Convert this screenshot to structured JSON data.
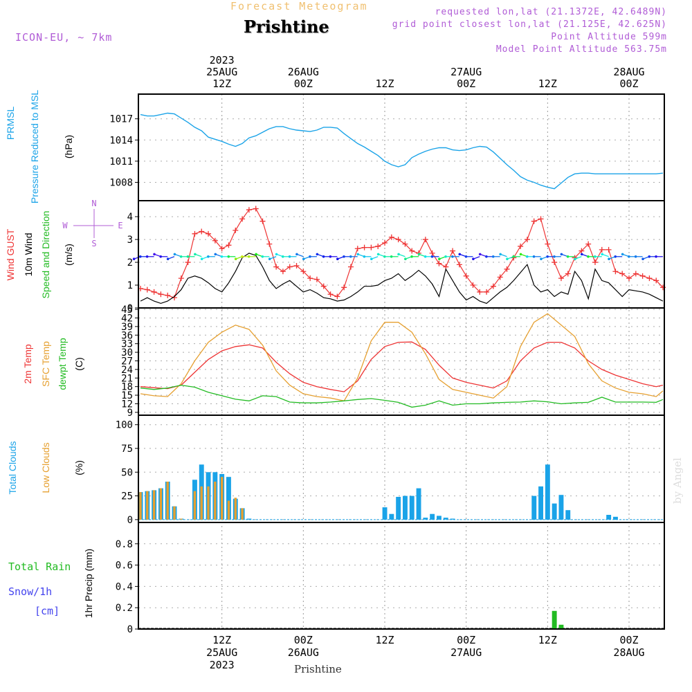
{
  "header": {
    "model": "ICON-EU, ~ 7km",
    "subtitle": "Forecast Meteogram",
    "title": "Prishtine",
    "requested": "requested lon,lat (21.1372E, 42.6489N)",
    "grid_point": "grid point closest lon,lat (21.125E, 42.625N)",
    "point_altitude": "Point Altitude 599m",
    "model_altitude": "Model Point Altitude 563.75m"
  },
  "watermark": "by Angel",
  "bottom_title": "Prishtine",
  "time_axis": {
    "ticks": [
      {
        "hour": 12,
        "time": "12Z",
        "date": "25AUG",
        "year": "2023"
      },
      {
        "hour": 24,
        "time": "00Z",
        "date": "26AUG",
        "year": ""
      },
      {
        "hour": 36,
        "time": "12Z",
        "date": "",
        "year": ""
      },
      {
        "hour": 48,
        "time": "00Z",
        "date": "27AUG",
        "year": ""
      },
      {
        "hour": 60,
        "time": "12Z",
        "date": "",
        "year": ""
      },
      {
        "hour": 72,
        "time": "00Z",
        "date": "28AUG",
        "year": ""
      }
    ],
    "x_range_hours": [
      0,
      77
    ]
  },
  "panel_labels": {
    "pressure": {
      "name": "PRMSL",
      "desc": "Pressure Reduced to MSL",
      "unit": "(hPa)"
    },
    "wind": {
      "gust": "Wind GUST",
      "wind": "10m Wind",
      "speed_dir": "Speed and Direction",
      "unit": "(m/s)",
      "compass_n": "N",
      "compass_s": "S",
      "compass_w": "W",
      "compass_e": "E"
    },
    "temp": {
      "t2m": "2m Temp",
      "sfc": "SFC Temp",
      "dewpt": "dewpt Temp",
      "unit": "(C)"
    },
    "clouds": {
      "total": "Total Clouds",
      "low": "Low Clouds",
      "unit": "(%)"
    },
    "precip": {
      "rain": "Total  Rain",
      "snow": "Snow/1h",
      "snow_unit": "[cm]",
      "unit": "1hr Precip (mm)"
    }
  },
  "colors": {
    "pressure": "#1aa3e8",
    "gust": "#ee3333",
    "wind": "#000000",
    "t2m": "#ee3333",
    "sfc": "#e6a030",
    "dewpt": "#22bb22",
    "total_clouds": "#1aa3e8",
    "low_clouds": "#e6a030",
    "rain": "#22bb22",
    "snow": "#4444ee",
    "header": "#b05cd6"
  },
  "chart_data": [
    {
      "type": "line",
      "title": "PRMSL Pressure Reduced to MSL",
      "ylabel": "(hPa)",
      "ylim": [
        1005.4,
        1020.5
      ],
      "yticks": [
        1008,
        1011,
        1014,
        1017
      ],
      "grid": true,
      "series": [
        {
          "name": "PRMSL",
          "x": [
            0,
            1,
            2,
            3,
            4,
            5,
            6,
            7,
            8,
            9,
            10,
            11,
            12,
            13,
            14,
            15,
            16,
            17,
            18,
            19,
            20,
            21,
            22,
            23,
            24,
            25,
            26,
            27,
            28,
            29,
            30,
            31,
            32,
            33,
            34,
            35,
            36,
            37,
            38,
            39,
            40,
            41,
            42,
            43,
            44,
            45,
            46,
            47,
            48,
            49,
            50,
            51,
            52,
            53,
            54,
            55,
            56,
            57,
            58,
            59,
            60,
            61,
            62,
            63,
            64,
            65,
            66,
            67,
            68,
            69,
            70,
            71,
            72,
            73,
            74,
            75,
            76,
            77
          ],
          "values": [
            1017.6,
            1017.4,
            1017.4,
            1017.6,
            1017.8,
            1017.7,
            1017.1,
            1016.5,
            1015.8,
            1015.3,
            1014.4,
            1014.1,
            1013.8,
            1013.4,
            1013.1,
            1013.5,
            1014.3,
            1014.6,
            1015.1,
            1015.6,
            1015.9,
            1015.9,
            1015.6,
            1015.4,
            1015.3,
            1015.2,
            1015.4,
            1015.8,
            1015.8,
            1015.7,
            1014.9,
            1014.2,
            1013.5,
            1013.0,
            1012.4,
            1011.8,
            1011.0,
            1010.5,
            1010.2,
            1010.5,
            1011.5,
            1012.0,
            1012.4,
            1012.7,
            1012.9,
            1012.9,
            1012.6,
            1012.5,
            1012.6,
            1012.9,
            1013.1,
            1013.0,
            1012.3,
            1011.4,
            1010.5,
            1009.7,
            1008.8,
            1008.3,
            1008.0,
            1007.6,
            1007.3,
            1007.1,
            1007.9,
            1008.7,
            1009.2,
            1009.3,
            1009.3,
            1009.2,
            1009.2,
            1009.2,
            1009.2,
            1009.2,
            1009.2,
            1009.2,
            1009.2,
            1009.2,
            1009.2,
            1009.3
          ]
        }
      ]
    },
    {
      "type": "line",
      "title": "Wind GUST / 10m Wind Speed and Direction",
      "ylabel": "(m/s)",
      "ylim": [
        0,
        4.7
      ],
      "yticks": [
        0,
        1,
        2,
        3,
        4
      ],
      "grid": true,
      "series": [
        {
          "name": "Wind GUST",
          "x": [
            0,
            1,
            2,
            3,
            4,
            5,
            6,
            7,
            8,
            9,
            10,
            11,
            12,
            13,
            14,
            15,
            16,
            17,
            18,
            19,
            20,
            21,
            22,
            23,
            24,
            25,
            26,
            27,
            28,
            29,
            30,
            31,
            32,
            33,
            34,
            35,
            36,
            37,
            38,
            39,
            40,
            41,
            42,
            43,
            44,
            45,
            46,
            47,
            48,
            49,
            50,
            51,
            52,
            53,
            54,
            55,
            56,
            57,
            58,
            59,
            60,
            61,
            62,
            63,
            64,
            65,
            66,
            67,
            68,
            69,
            70,
            71,
            72,
            73,
            74,
            75,
            76,
            77
          ],
          "values": [
            0.85,
            0.8,
            0.7,
            0.6,
            0.55,
            0.45,
            1.3,
            2.0,
            3.25,
            3.35,
            3.25,
            2.95,
            2.6,
            2.75,
            3.4,
            3.9,
            4.3,
            4.35,
            3.8,
            2.8,
            1.8,
            1.6,
            1.8,
            1.85,
            1.6,
            1.3,
            1.25,
            0.95,
            0.6,
            0.5,
            0.9,
            1.8,
            2.6,
            2.65,
            2.65,
            2.7,
            2.85,
            3.1,
            3.0,
            2.8,
            2.5,
            2.4,
            3.0,
            2.4,
            1.95,
            1.8,
            2.5,
            1.9,
            1.4,
            1.0,
            0.7,
            0.7,
            0.95,
            1.35,
            1.7,
            2.2,
            2.7,
            3.0,
            3.8,
            3.9,
            2.8,
            2.0,
            1.3,
            1.5,
            2.2,
            2.5,
            2.8,
            2.0,
            2.55,
            2.55,
            1.6,
            1.5,
            1.3,
            1.5,
            1.4,
            1.3,
            1.2,
            0.9
          ]
        },
        {
          "name": "10m Wind",
          "x": [
            0,
            1,
            2,
            3,
            4,
            5,
            6,
            7,
            8,
            9,
            10,
            11,
            12,
            13,
            14,
            15,
            16,
            17,
            18,
            19,
            20,
            21,
            22,
            23,
            24,
            25,
            26,
            27,
            28,
            29,
            30,
            31,
            32,
            33,
            34,
            35,
            36,
            37,
            38,
            39,
            40,
            41,
            42,
            43,
            44,
            45,
            46,
            47,
            48,
            49,
            50,
            51,
            52,
            53,
            54,
            55,
            56,
            57,
            58,
            59,
            60,
            61,
            62,
            63,
            64,
            65,
            66,
            67,
            68,
            69,
            70,
            71,
            72,
            73,
            74,
            75,
            76,
            77
          ],
          "values": [
            0.3,
            0.45,
            0.3,
            0.2,
            0.3,
            0.5,
            0.8,
            1.3,
            1.4,
            1.3,
            1.1,
            0.85,
            0.7,
            1.1,
            1.6,
            2.2,
            2.4,
            2.3,
            1.8,
            1.2,
            0.85,
            1.05,
            1.2,
            0.95,
            0.7,
            0.8,
            0.65,
            0.45,
            0.4,
            0.3,
            0.35,
            0.5,
            0.7,
            0.95,
            0.95,
            1.0,
            1.2,
            1.3,
            1.5,
            1.2,
            1.4,
            1.65,
            1.4,
            1.05,
            0.5,
            1.7,
            1.2,
            0.7,
            0.35,
            0.5,
            0.3,
            0.2,
            0.45,
            0.7,
            0.9,
            1.2,
            1.55,
            1.9,
            1.0,
            0.7,
            0.8,
            0.5,
            0.7,
            0.6,
            1.6,
            1.2,
            0.4,
            1.7,
            1.2,
            1.1,
            0.8,
            0.5,
            0.8,
            0.75,
            0.7,
            0.6,
            0.45,
            0.3
          ]
        }
      ]
    },
    {
      "type": "line",
      "title": "2m Temp / SFC Temp / dewpt Temp",
      "ylabel": "(C)",
      "ylim": [
        8,
        45.5
      ],
      "yticks": [
        9,
        12,
        15,
        18,
        21,
        24,
        27,
        30,
        33,
        36,
        39,
        42,
        45
      ],
      "grid": true,
      "series": [
        {
          "name": "2m Temp",
          "x": [
            0,
            2,
            4,
            6,
            8,
            10,
            12,
            14,
            16,
            18,
            20,
            22,
            24,
            26,
            28,
            30,
            32,
            34,
            36,
            38,
            40,
            42,
            44,
            46,
            48,
            50,
            52,
            54,
            56,
            58,
            60,
            62,
            64,
            66,
            68,
            70,
            72,
            74,
            76,
            77
          ],
          "values": [
            18.0,
            17.6,
            17.3,
            18.5,
            23.0,
            27.5,
            30.5,
            32.0,
            32.6,
            31.5,
            26.5,
            22.5,
            19.5,
            18.0,
            17.0,
            16.2,
            20.0,
            27.5,
            32.0,
            33.5,
            33.6,
            31.0,
            25.5,
            21.0,
            19.5,
            18.5,
            17.5,
            20.0,
            27.0,
            31.5,
            33.5,
            33.5,
            31.5,
            27.0,
            24.0,
            22.0,
            20.5,
            19.0,
            18.0,
            18.5
          ]
        },
        {
          "name": "SFC Temp",
          "x": [
            0,
            2,
            4,
            6,
            8,
            10,
            12,
            14,
            16,
            18,
            20,
            22,
            24,
            26,
            28,
            30,
            32,
            34,
            36,
            38,
            40,
            42,
            44,
            46,
            48,
            50,
            52,
            54,
            56,
            58,
            60,
            62,
            64,
            66,
            68,
            70,
            72,
            74,
            76,
            77
          ],
          "values": [
            15.5,
            14.8,
            14.5,
            19.0,
            27.0,
            33.5,
            37.0,
            39.5,
            38.0,
            32.5,
            23.5,
            18.5,
            15.5,
            14.5,
            14.0,
            13.0,
            21.0,
            34.0,
            40.5,
            40.5,
            37.0,
            29.5,
            20.5,
            17.0,
            16.0,
            15.0,
            14.0,
            18.0,
            32.0,
            40.5,
            43.5,
            39.5,
            35.5,
            26.0,
            20.0,
            17.5,
            16.0,
            15.5,
            14.5,
            16.5
          ]
        },
        {
          "name": "dewpt Temp",
          "x": [
            0,
            2,
            4,
            6,
            8,
            10,
            12,
            14,
            16,
            18,
            20,
            22,
            24,
            26,
            28,
            30,
            32,
            34,
            36,
            38,
            40,
            42,
            44,
            46,
            48,
            50,
            52,
            54,
            56,
            58,
            60,
            62,
            64,
            66,
            68,
            70,
            72,
            74,
            76,
            77
          ],
          "values": [
            17.5,
            17.0,
            17.5,
            18.5,
            17.8,
            16.0,
            14.8,
            13.6,
            13.0,
            14.8,
            14.5,
            12.6,
            12.3,
            12.3,
            12.6,
            13.0,
            13.5,
            13.8,
            13.2,
            12.5,
            10.8,
            11.5,
            13.0,
            11.5,
            12.0,
            12.0,
            12.3,
            12.5,
            12.6,
            13.0,
            12.7,
            12.0,
            12.3,
            12.5,
            14.3,
            12.6,
            12.6,
            12.6,
            12.5,
            13.5
          ]
        }
      ]
    },
    {
      "type": "bar",
      "title": "Total Clouds / Low Clouds",
      "ylabel": "(%)",
      "ylim": [
        -3,
        110
      ],
      "yticks": [
        0,
        25,
        50,
        75,
        100
      ],
      "grid": true,
      "series": [
        {
          "name": "Total Clouds",
          "x": [
            0,
            1,
            2,
            3,
            4,
            5,
            6,
            8,
            9,
            10,
            11,
            12,
            13,
            14,
            15,
            16,
            36,
            37,
            38,
            39,
            40,
            41,
            42,
            43,
            44,
            45,
            46,
            58,
            59,
            60,
            61,
            62,
            63,
            69,
            70
          ],
          "values": [
            29,
            30,
            31,
            33,
            40,
            14,
            1,
            42,
            58,
            50,
            50,
            48,
            45,
            22,
            12,
            1,
            13,
            6,
            24,
            25,
            25,
            33,
            2,
            6,
            4,
            2,
            1,
            25,
            35,
            58,
            17,
            26,
            10,
            5,
            3
          ]
        },
        {
          "name": "Low Clouds",
          "x": [
            0,
            1,
            2,
            3,
            4,
            5,
            6,
            8,
            9,
            10,
            11,
            12,
            13,
            14,
            15
          ],
          "values": [
            29,
            30,
            31,
            33,
            40,
            14,
            1,
            30,
            35,
            35,
            40,
            45,
            20,
            23,
            12
          ]
        }
      ]
    },
    {
      "type": "bar",
      "title": "Total Rain / Snow/1h",
      "ylabel": "1hr Precip (mm)",
      "ylim": [
        0,
        1.0
      ],
      "yticks": [
        0,
        0.2,
        0.4,
        0.6,
        0.8
      ],
      "grid": true,
      "series": [
        {
          "name": "Total Rain",
          "x": [
            61,
            62
          ],
          "values": [
            0.17,
            0.04
          ]
        }
      ]
    }
  ]
}
